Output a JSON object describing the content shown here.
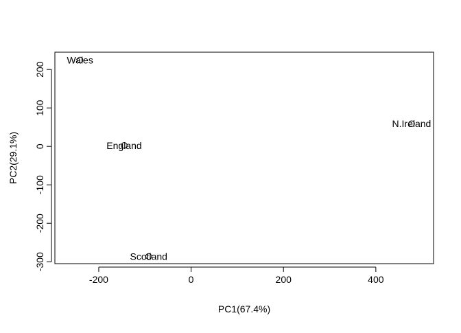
{
  "chart_data": {
    "type": "scatter",
    "title": "",
    "xlabel": "PC1(67.4%)",
    "ylabel": "PC2(29.1%)",
    "xlim": [
      -295,
      525
    ],
    "ylim": [
      -305,
      245
    ],
    "x_ticks": [
      -200,
      0,
      200,
      400
    ],
    "y_ticks": [
      -300,
      -200,
      -100,
      0,
      100,
      200
    ],
    "grid": false,
    "legend": "none",
    "marker": "open-circle",
    "points": [
      {
        "label": "England",
        "x": -144.99,
        "y": 2.53
      },
      {
        "label": "Wales",
        "x": -240.53,
        "y": 224.65
      },
      {
        "label": "Scotland",
        "x": -91.87,
        "y": -286.08
      },
      {
        "label": "N.Ireland",
        "x": 477.39,
        "y": 58.9
      }
    ],
    "colors": {
      "axis": "#000000",
      "text": "#000000"
    }
  }
}
